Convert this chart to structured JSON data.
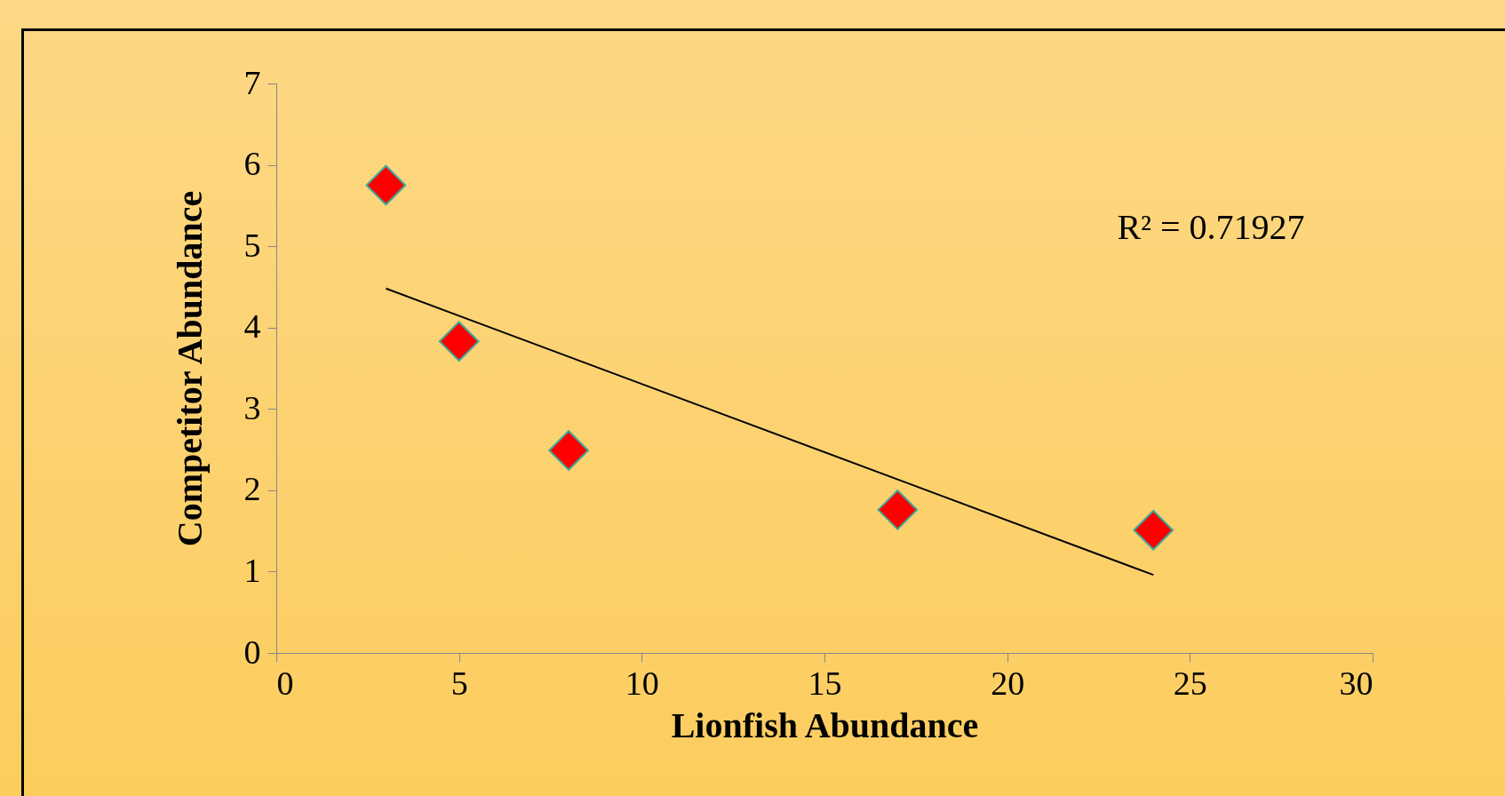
{
  "chart_data": {
    "type": "scatter",
    "xlabel": "Lionfish Abundance",
    "ylabel": "Competitor Abundance",
    "x": [
      3,
      5,
      8,
      17,
      24
    ],
    "series": [
      {
        "color": "#ff0000",
        "values": [
          5.75,
          3.83,
          2.49,
          1.76,
          1.51
        ]
      },
      {
        "type": "line",
        "color": "#000000",
        "marker": "none",
        "x": [
          3,
          24
        ],
        "values": [
          4.48,
          0.96
        ]
      }
    ],
    "xlim": [
      0,
      30
    ],
    "xticks": [
      0,
      5,
      10,
      15,
      20,
      25,
      30
    ],
    "ylim": [
      0,
      7
    ],
    "yticks": [
      0,
      1,
      2,
      3,
      4,
      5,
      6,
      7
    ],
    "marker": "diamond",
    "grid": false,
    "annotations": [
      "R² = 0.71927"
    ]
  }
}
